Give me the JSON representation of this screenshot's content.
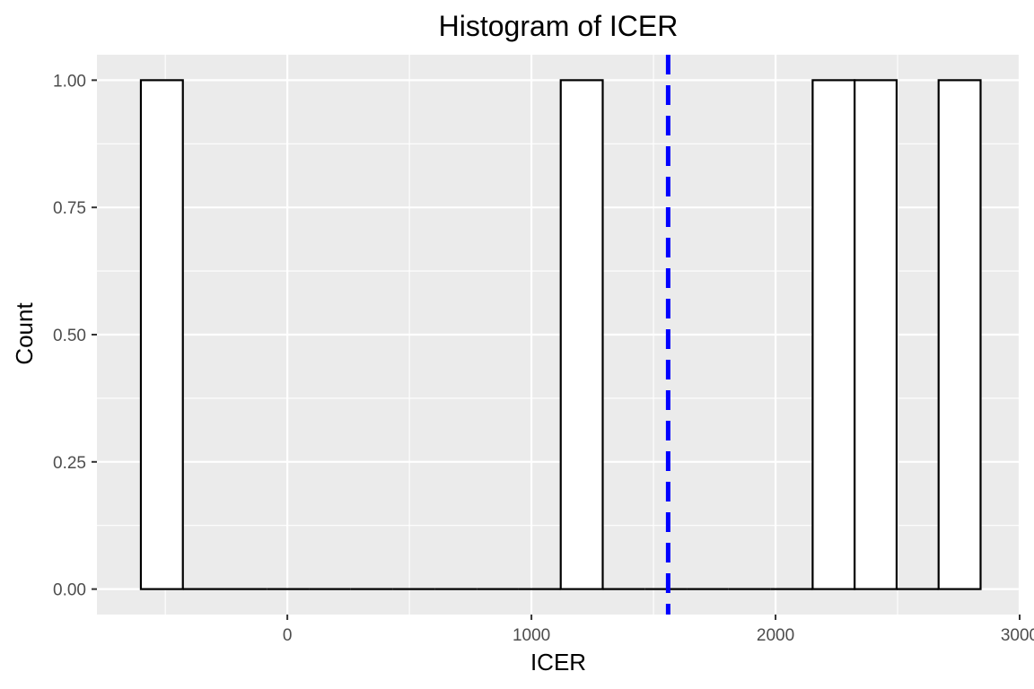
{
  "chart_data": {
    "type": "bar",
    "subtype": "histogram",
    "title": "Histogram of ICER",
    "xlabel": "ICER",
    "ylabel": "Count",
    "xlim": [
      -780,
      3000
    ],
    "ylim": [
      -0.05,
      1.05
    ],
    "x_ticks": [
      0,
      1000,
      2000,
      3000
    ],
    "x_tick_labels": [
      "0",
      "1000",
      "2000",
      "3000"
    ],
    "y_ticks": [
      0,
      0.25,
      0.5,
      0.75,
      1
    ],
    "y_tick_labels": [
      "0.00",
      "0.25",
      "0.50",
      "0.75",
      "1.00"
    ],
    "bin_width": 172,
    "bins": [
      {
        "x_start": -600,
        "x_end": -428,
        "count": 1
      },
      {
        "x_start": -428,
        "x_end": -256,
        "count": 0
      },
      {
        "x_start": -256,
        "x_end": -84,
        "count": 0
      },
      {
        "x_start": -84,
        "x_end": 88,
        "count": 0
      },
      {
        "x_start": 88,
        "x_end": 260,
        "count": 0
      },
      {
        "x_start": 260,
        "x_end": 432,
        "count": 0
      },
      {
        "x_start": 432,
        "x_end": 604,
        "count": 0
      },
      {
        "x_start": 604,
        "x_end": 776,
        "count": 0
      },
      {
        "x_start": 776,
        "x_end": 948,
        "count": 0
      },
      {
        "x_start": 948,
        "x_end": 1120,
        "count": 0
      },
      {
        "x_start": 1120,
        "x_end": 1292,
        "count": 1
      },
      {
        "x_start": 1292,
        "x_end": 1464,
        "count": 0
      },
      {
        "x_start": 1464,
        "x_end": 1636,
        "count": 0
      },
      {
        "x_start": 1636,
        "x_end": 1808,
        "count": 0
      },
      {
        "x_start": 1808,
        "x_end": 1980,
        "count": 0
      },
      {
        "x_start": 1980,
        "x_end": 2152,
        "count": 0
      },
      {
        "x_start": 2152,
        "x_end": 2324,
        "count": 1
      },
      {
        "x_start": 2324,
        "x_end": 2496,
        "count": 1
      },
      {
        "x_start": 2496,
        "x_end": 2668,
        "count": 0
      },
      {
        "x_start": 2668,
        "x_end": 2840,
        "count": 1
      }
    ],
    "reference_line": {
      "x": 1560,
      "style": "dashed",
      "color": "#0000ff"
    },
    "grid": true,
    "colors": {
      "panel_background": "#ebebeb",
      "grid": "#ffffff",
      "bar_fill": "#ffffff",
      "bar_outline": "#000000",
      "reference_line": "#0000ff"
    }
  }
}
